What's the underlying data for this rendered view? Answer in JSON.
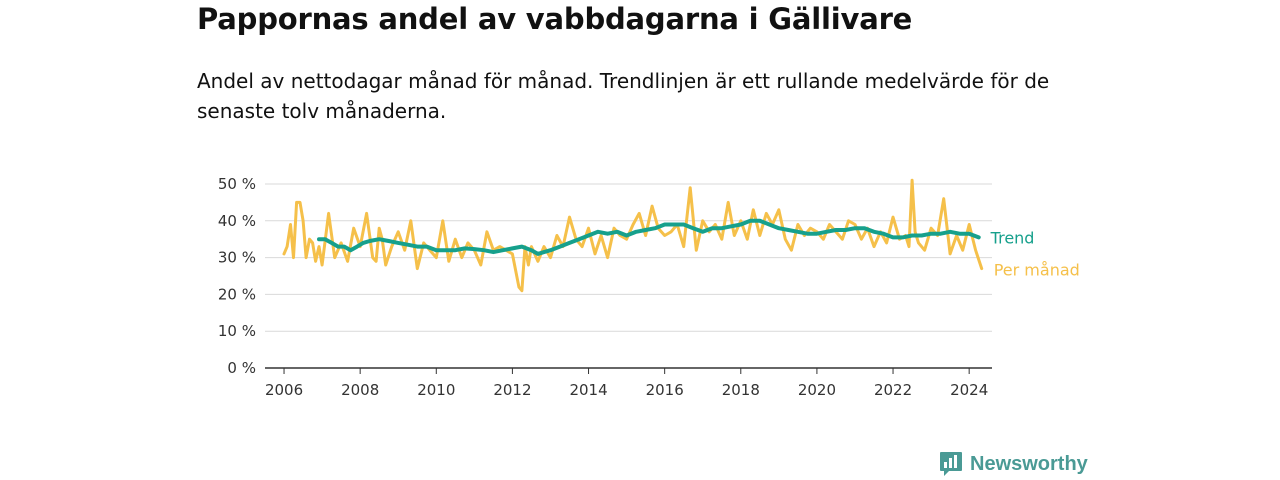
{
  "title": "Pappornas andel av vabbdagarna i Gällivare",
  "subtitle": "Andel av nettodagar månad för månad. Trendlinjen är ett rullande medelvärde för de senaste tolv månaderna.",
  "brand": {
    "name": "Newsworthy",
    "icon": "newsworthy-logo-icon",
    "color": "#4a9a95"
  },
  "chart_data": {
    "type": "line",
    "title": "Pappornas andel av vabbdagarna i Gällivare",
    "xlabel": "",
    "ylabel": "",
    "xlim": [
      2005.5,
      2024.6
    ],
    "ylim": [
      0,
      50
    ],
    "y_ticks": [
      0,
      10,
      20,
      30,
      40,
      50
    ],
    "y_tick_labels": [
      "0 %",
      "10 %",
      "20 %",
      "30 %",
      "40 %",
      "50 %"
    ],
    "x_ticks": [
      2006,
      2008,
      2010,
      2012,
      2014,
      2016,
      2018,
      2020,
      2022,
      2024
    ],
    "x_tick_labels": [
      "2006",
      "2008",
      "2010",
      "2012",
      "2014",
      "2016",
      "2018",
      "2020",
      "2022",
      "2024"
    ],
    "grid": true,
    "legend": "inline labels at line ends",
    "series": [
      {
        "name": "Per månad",
        "color": "#f5c04a",
        "x": [
          2006.0,
          2006.08,
          2006.17,
          2006.25,
          2006.33,
          2006.42,
          2006.5,
          2006.58,
          2006.67,
          2006.75,
          2006.83,
          2006.92,
          2007.0,
          2007.17,
          2007.33,
          2007.5,
          2007.67,
          2007.83,
          2008.0,
          2008.17,
          2008.33,
          2008.42,
          2008.5,
          2008.58,
          2008.67,
          2008.83,
          2009.0,
          2009.17,
          2009.33,
          2009.5,
          2009.67,
          2009.83,
          2010.0,
          2010.17,
          2010.33,
          2010.5,
          2010.67,
          2010.83,
          2011.0,
          2011.17,
          2011.33,
          2011.5,
          2011.67,
          2011.83,
          2012.0,
          2012.17,
          2012.25,
          2012.33,
          2012.42,
          2012.5,
          2012.67,
          2012.83,
          2013.0,
          2013.17,
          2013.33,
          2013.5,
          2013.67,
          2013.83,
          2014.0,
          2014.17,
          2014.33,
          2014.5,
          2014.67,
          2014.83,
          2015.0,
          2015.17,
          2015.33,
          2015.5,
          2015.67,
          2015.83,
          2016.0,
          2016.17,
          2016.33,
          2016.5,
          2016.67,
          2016.83,
          2017.0,
          2017.17,
          2017.33,
          2017.5,
          2017.67,
          2017.83,
          2018.0,
          2018.17,
          2018.33,
          2018.5,
          2018.67,
          2018.83,
          2019.0,
          2019.17,
          2019.33,
          2019.5,
          2019.67,
          2019.83,
          2020.0,
          2020.17,
          2020.33,
          2020.5,
          2020.67,
          2020.83,
          2021.0,
          2021.17,
          2021.33,
          2021.5,
          2021.67,
          2021.83,
          2022.0,
          2022.17,
          2022.33,
          2022.42,
          2022.5,
          2022.58,
          2022.67,
          2022.83,
          2023.0,
          2023.17,
          2023.33,
          2023.5,
          2023.67,
          2023.83,
          2024.0,
          2024.17,
          2024.33
        ],
        "values": [
          31,
          33,
          39,
          30,
          45,
          45,
          40,
          30,
          35,
          34,
          29,
          33,
          28,
          42,
          30,
          34,
          29,
          38,
          33,
          42,
          30,
          29,
          38,
          35,
          28,
          33,
          37,
          32,
          40,
          27,
          34,
          32,
          30,
          40,
          29,
          35,
          30,
          34,
          32,
          28,
          37,
          32,
          33,
          32,
          31,
          22,
          21,
          33,
          28,
          33,
          29,
          33,
          30,
          36,
          33,
          41,
          35,
          33,
          38,
          31,
          36,
          30,
          38,
          36,
          35,
          39,
          42,
          36,
          44,
          38,
          36,
          37,
          39,
          33,
          49,
          32,
          40,
          37,
          39,
          35,
          45,
          36,
          40,
          35,
          43,
          36,
          42,
          39,
          43,
          35,
          32,
          39,
          36,
          38,
          37,
          35,
          39,
          37,
          35,
          40,
          39,
          35,
          38,
          33,
          37,
          34,
          41,
          35,
          36,
          33,
          51,
          37,
          34,
          32,
          38,
          36,
          46,
          31,
          36,
          32,
          39,
          32,
          27
        ]
      },
      {
        "name": "Trend",
        "color": "#16a08c",
        "x": [
          2006.92,
          2007.08,
          2007.25,
          2007.42,
          2007.58,
          2007.75,
          2007.92,
          2008.08,
          2008.25,
          2008.5,
          2008.75,
          2009.0,
          2009.25,
          2009.5,
          2009.75,
          2010.0,
          2010.25,
          2010.5,
          2010.75,
          2011.0,
          2011.25,
          2011.5,
          2011.75,
          2012.0,
          2012.25,
          2012.5,
          2012.67,
          2012.83,
          2013.0,
          2013.25,
          2013.5,
          2013.75,
          2014.0,
          2014.25,
          2014.5,
          2014.75,
          2015.0,
          2015.25,
          2015.5,
          2015.75,
          2016.0,
          2016.25,
          2016.5,
          2016.75,
          2017.0,
          2017.25,
          2017.5,
          2017.75,
          2018.0,
          2018.25,
          2018.5,
          2018.75,
          2019.0,
          2019.25,
          2019.5,
          2019.75,
          2020.0,
          2020.25,
          2020.5,
          2020.75,
          2021.0,
          2021.25,
          2021.5,
          2021.75,
          2022.0,
          2022.25,
          2022.5,
          2022.75,
          2023.0,
          2023.25,
          2023.5,
          2023.75,
          2024.0,
          2024.25
        ],
        "values": [
          35,
          35,
          34,
          33,
          33,
          32,
          33,
          34,
          34.5,
          35,
          34.5,
          34,
          33.5,
          33,
          33,
          32,
          32,
          32,
          32.5,
          32.3,
          32,
          31.5,
          32,
          32.5,
          33,
          32,
          31,
          31.5,
          32,
          33,
          34,
          35,
          36,
          37,
          36.5,
          37,
          36,
          37,
          37.5,
          38,
          39,
          39,
          39,
          38,
          37,
          38,
          38,
          38.5,
          39,
          40,
          40,
          39,
          38,
          37.5,
          37,
          36.5,
          36.5,
          37,
          37.5,
          37.5,
          38,
          38,
          37,
          36.5,
          35.5,
          35.5,
          36,
          36,
          36.5,
          36.5,
          37,
          36.5,
          36.5,
          35.5
        ]
      }
    ]
  }
}
